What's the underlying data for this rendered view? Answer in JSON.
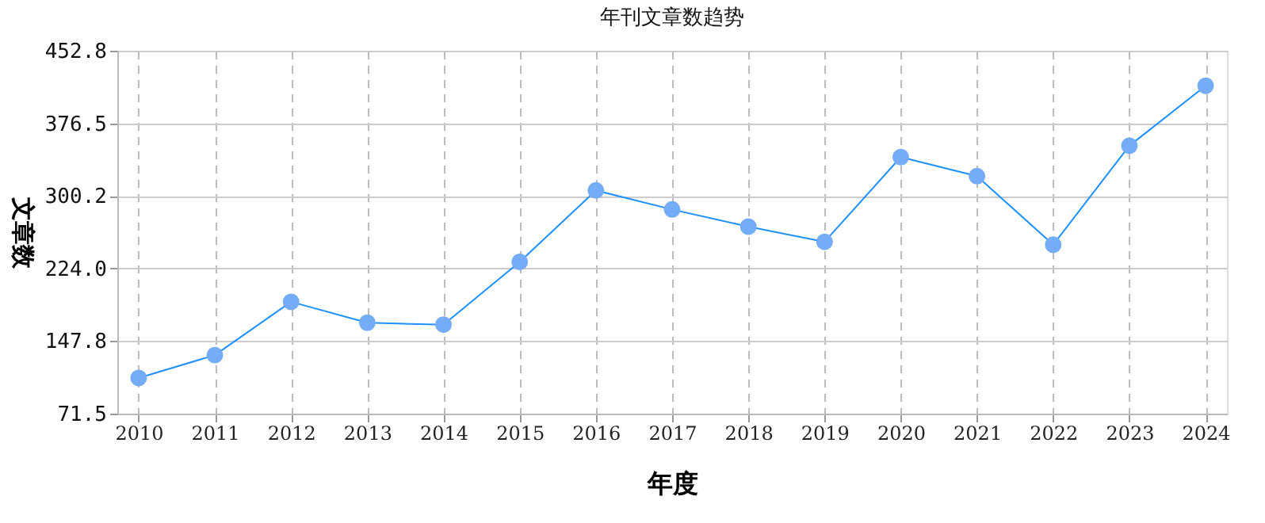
{
  "chart_data": {
    "type": "line",
    "title": "年刊文章数趋势",
    "xlabel": "年度",
    "ylabel": "文章数",
    "categories": [
      "2010",
      "2011",
      "2012",
      "2013",
      "2014",
      "2015",
      "2016",
      "2017",
      "2018",
      "2019",
      "2020",
      "2021",
      "2022",
      "2023",
      "2024"
    ],
    "series": [
      {
        "color": "#1e90ff",
        "values": [
          109,
          133,
          189,
          167,
          165,
          231,
          306,
          286,
          268,
          252,
          341,
          321,
          249,
          353,
          416
        ]
      }
    ],
    "ylim": [
      71.5,
      452.8
    ],
    "yticks": [
      {
        "value": 71.5,
        "label": "71.5"
      },
      {
        "value": 147.8,
        "label": "147.8"
      },
      {
        "value": 224.0,
        "label": "224.0"
      },
      {
        "value": 300.2,
        "label": "300.2"
      },
      {
        "value": 376.5,
        "label": "376.5"
      },
      {
        "value": 452.8,
        "label": "452.8"
      }
    ],
    "grid": true,
    "marker": "circle",
    "line_style": "solid"
  }
}
